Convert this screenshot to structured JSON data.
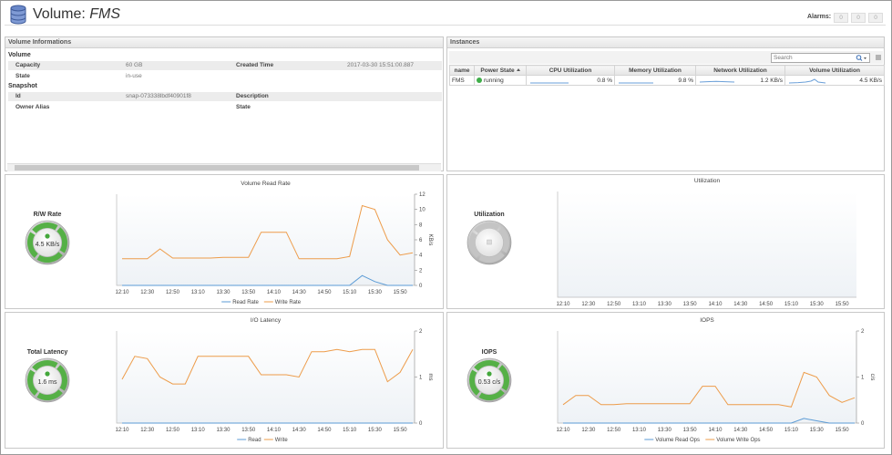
{
  "header": {
    "title_prefix": "Volume:",
    "title_name": "FMS",
    "alarms_label": "Alarms:",
    "alarm_counts": [
      "0",
      "0",
      "0"
    ]
  },
  "volume_info": {
    "title": "Volume Informations",
    "sections": [
      {
        "title": "Volume",
        "rows": [
          {
            "label": "Capacity",
            "value": "60 GB",
            "label2": "Created Time",
            "value2": "2017-03-30 15:51:00.887"
          },
          {
            "label": "State",
            "value": "in-use"
          }
        ]
      },
      {
        "title": "Snapshot",
        "rows": [
          {
            "label": "Id",
            "value": "snap-073338lbdf40901f8",
            "label2": "Description"
          },
          {
            "label": "Owner Alias",
            "label2": "State"
          }
        ]
      }
    ]
  },
  "instances": {
    "title": "Instances",
    "search_placeholder": "Search",
    "columns": [
      "name",
      "Power State",
      "CPU Utilization",
      "Memory Utilization",
      "Network Utilization",
      "Volume Utilization"
    ],
    "rows": [
      [
        "FMS",
        "running",
        "0.8 %",
        "9.8 %",
        "1.2 KB/s",
        "4.5 KB/s"
      ]
    ]
  },
  "panels": [
    {
      "gauge_label": "R/W Rate",
      "gauge_value": "4.5 KB/s"
    },
    {
      "gauge_label": "Utilization"
    },
    {
      "gauge_label": "Total Latency",
      "gauge_value": "1.6 ms"
    },
    {
      "gauge_label": "IOPS",
      "gauge_value": "0.53 c/s"
    }
  ],
  "chart_data": [
    {
      "type": "line",
      "title": "Volume Read Rate",
      "y_label": "KB/s",
      "categories": [
        "12:10",
        null,
        "12:30",
        null,
        "12:50",
        null,
        "13:10",
        null,
        "13:30",
        null,
        "13:50",
        null,
        "14:10",
        null,
        "14:30",
        null,
        "14:50",
        null,
        "15:10",
        null,
        "15:30",
        null,
        "15:50",
        null
      ],
      "ylim": [
        0,
        12
      ],
      "yticks": [
        0,
        2,
        4,
        6,
        8,
        10,
        12
      ],
      "series": [
        {
          "name": "Read Rate",
          "color": "#5b9bd5",
          "values": [
            0,
            0,
            0,
            0,
            0,
            0,
            0,
            0,
            0,
            0,
            0,
            0,
            0,
            0,
            0,
            0,
            0,
            0,
            0,
            1.3,
            0.5,
            0,
            0,
            0
          ]
        },
        {
          "name": "Write Rate",
          "color": "#ed9c4a",
          "values": [
            3.5,
            3.5,
            3.5,
            4.8,
            3.6,
            3.6,
            3.6,
            3.6,
            3.7,
            3.7,
            3.7,
            7,
            7,
            7,
            3.5,
            3.5,
            3.5,
            3.5,
            3.8,
            10.5,
            10,
            6,
            4,
            4.3
          ]
        }
      ]
    },
    {
      "type": "line",
      "title": "Utilization",
      "categories": [
        "12:10",
        null,
        "12:30",
        null,
        "12:50",
        null,
        "13:10",
        null,
        "13:30",
        null,
        "13:50",
        null,
        "14:10",
        null,
        "14:30",
        null,
        "14:50",
        null,
        "15:10",
        null,
        "15:30",
        null,
        "15:50",
        null
      ],
      "series": []
    },
    {
      "type": "line",
      "title": "I/O Latency",
      "y_label": "ms",
      "categories": [
        "12:10",
        null,
        "12:30",
        null,
        "12:50",
        null,
        "13:10",
        null,
        "13:30",
        null,
        "13:50",
        null,
        "14:10",
        null,
        "14:30",
        null,
        "14:50",
        null,
        "15:10",
        null,
        "15:30",
        null,
        "15:50",
        null
      ],
      "ylim": [
        0,
        2
      ],
      "yticks": [
        0,
        1,
        2
      ],
      "series": [
        {
          "name": "Read",
          "color": "#5b9bd5",
          "values": [
            0,
            0,
            0,
            0,
            0,
            0,
            0,
            0,
            0,
            0,
            0,
            0,
            0,
            0,
            0,
            0,
            0,
            0,
            0,
            0,
            0,
            0,
            0,
            0
          ]
        },
        {
          "name": "Write",
          "color": "#ed9c4a",
          "values": [
            0.95,
            1.45,
            1.4,
            1.0,
            0.85,
            0.85,
            1.45,
            1.45,
            1.45,
            1.45,
            1.45,
            1.05,
            1.05,
            1.05,
            1.0,
            1.55,
            1.55,
            1.6,
            1.55,
            1.6,
            1.6,
            0.9,
            1.1,
            1.6
          ]
        }
      ]
    },
    {
      "type": "line",
      "title": "IOPS",
      "y_label": "c/s",
      "categories": [
        "12:10",
        null,
        "12:30",
        null,
        "12:50",
        null,
        "13:10",
        null,
        "13:30",
        null,
        "13:50",
        null,
        "14:10",
        null,
        "14:30",
        null,
        "14:50",
        null,
        "15:10",
        null,
        "15:30",
        null,
        "15:50",
        null
      ],
      "ylim": [
        0,
        2
      ],
      "yticks": [
        0,
        1,
        2
      ],
      "series": [
        {
          "name": "Volume Read Ops",
          "color": "#5b9bd5",
          "values": [
            0,
            0,
            0,
            0,
            0,
            0,
            0,
            0,
            0,
            0,
            0,
            0,
            0,
            0,
            0,
            0,
            0,
            0,
            0,
            0.1,
            0.05,
            0,
            0,
            0
          ]
        },
        {
          "name": "Volume Write Ops",
          "color": "#ed9c4a",
          "values": [
            0.4,
            0.6,
            0.6,
            0.4,
            0.4,
            0.42,
            0.42,
            0.42,
            0.42,
            0.42,
            0.42,
            0.8,
            0.8,
            0.4,
            0.4,
            0.4,
            0.4,
            0.4,
            0.35,
            1.1,
            1.0,
            0.6,
            0.45,
            0.55
          ]
        }
      ]
    }
  ]
}
